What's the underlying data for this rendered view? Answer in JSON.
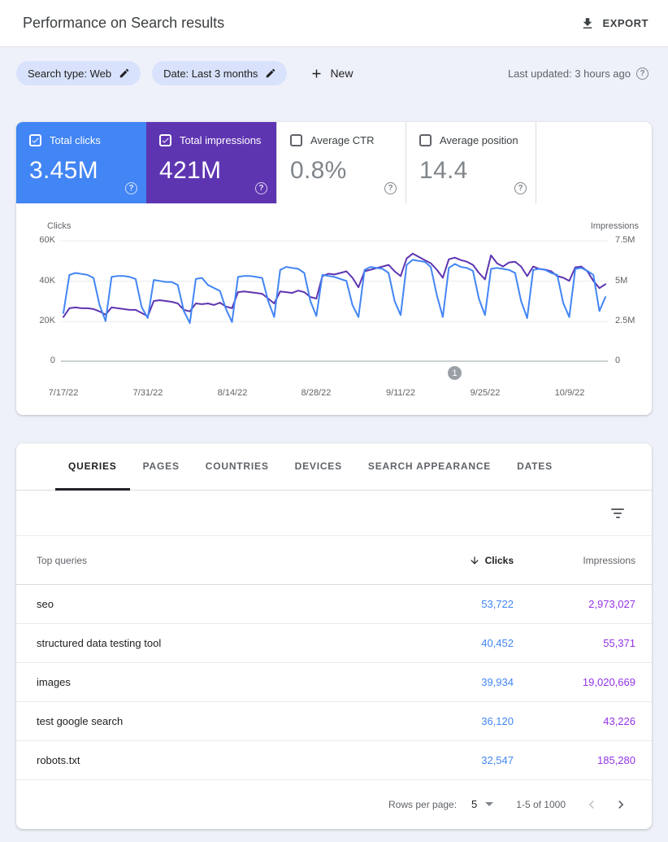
{
  "header": {
    "title": "Performance on Search results",
    "export_label": "EXPORT"
  },
  "filter_bar": {
    "search_type_chip": "Search type: Web",
    "date_chip": "Date: Last 3 months",
    "new_button": "New",
    "last_updated": "Last updated: 3 hours ago",
    "help_glyph": "?"
  },
  "metric_cards": [
    {
      "label": "Total clicks",
      "value": "3.45M",
      "selected": true,
      "color": "#4285f4"
    },
    {
      "label": "Total impressions",
      "value": "421M",
      "selected": true,
      "color": "#5e35b1"
    },
    {
      "label": "Average CTR",
      "value": "0.8%",
      "selected": false
    },
    {
      "label": "Average position",
      "value": "14.4",
      "selected": false
    }
  ],
  "chart_data": {
    "type": "line",
    "grid": "horizontal",
    "x_tick_labels": [
      "7/17/22",
      "7/31/22",
      "8/14/22",
      "8/28/22",
      "9/11/22",
      "9/25/22",
      "10/9/22"
    ],
    "left_axis": {
      "label": "Clicks",
      "ticks": [
        "60K",
        "40K",
        "20K",
        "0"
      ],
      "max": 60,
      "unit": "thousands"
    },
    "right_axis": {
      "label": "Impressions",
      "ticks": [
        "7.5M",
        "5M",
        "2.5M",
        "0"
      ],
      "max": 7.5,
      "unit": "millions"
    },
    "annotation": {
      "label": "1",
      "x_frac": 0.723
    },
    "series": [
      {
        "name": "Clicks",
        "axis": "left",
        "color": "#4285f4",
        "unit": "thousands",
        "values": [
          24,
          43,
          44,
          43.5,
          43,
          41.5,
          28,
          20,
          42,
          42.5,
          42.5,
          42,
          41,
          27,
          21.5,
          40.5,
          40,
          39.5,
          39.5,
          38,
          25,
          19,
          41,
          41.5,
          38,
          36.5,
          35,
          26,
          19.5,
          42,
          42.5,
          42.5,
          42,
          41.5,
          30,
          22,
          45.5,
          47,
          46.5,
          46,
          44,
          30,
          22.5,
          43,
          42.5,
          42,
          41,
          40,
          28,
          22,
          45.5,
          47,
          46.5,
          46,
          44,
          30,
          23,
          48,
          50.5,
          50,
          49.5,
          47,
          33,
          22,
          46.5,
          48.5,
          47,
          46.5,
          45,
          31,
          23,
          46,
          46.5,
          46,
          45.5,
          44,
          30,
          21.5,
          45.5,
          46,
          45.5,
          44,
          43,
          29,
          22,
          46,
          46.5,
          45,
          43,
          25,
          32
        ]
      },
      {
        "name": "Impressions",
        "axis": "right",
        "color": "#5e35b1",
        "unit": "millions",
        "values": [
          2.75,
          3.3,
          3.35,
          3.3,
          3.3,
          3.25,
          3.1,
          2.9,
          3.35,
          3.3,
          3.25,
          3.2,
          3.2,
          3.0,
          2.8,
          3.75,
          3.8,
          3.75,
          3.7,
          3.6,
          3.2,
          3.1,
          3.6,
          3.55,
          3.6,
          3.5,
          3.65,
          3.4,
          3.3,
          4.3,
          4.35,
          4.3,
          4.25,
          4.2,
          3.9,
          3.6,
          4.35,
          4.3,
          4.25,
          4.4,
          4.3,
          4.0,
          3.9,
          5.3,
          5.45,
          5.4,
          5.5,
          5.6,
          5.2,
          4.6,
          5.6,
          5.7,
          5.8,
          5.9,
          6.0,
          5.6,
          5.3,
          6.4,
          6.7,
          6.5,
          6.3,
          6.1,
          5.7,
          5.2,
          6.35,
          6.45,
          6.3,
          6.2,
          6.0,
          5.5,
          5.1,
          6.6,
          6.1,
          5.9,
          6.15,
          6.2,
          5.9,
          5.3,
          5.9,
          5.75,
          5.7,
          5.6,
          5.3,
          5.2,
          5.0,
          5.85,
          5.9,
          5.6,
          5.0,
          4.55,
          4.8
        ]
      }
    ]
  },
  "tabs": [
    "QUERIES",
    "PAGES",
    "COUNTRIES",
    "DEVICES",
    "SEARCH APPEARANCE",
    "DATES"
  ],
  "table": {
    "columns": {
      "query": "Top queries",
      "clicks": "Clicks",
      "impressions": "Impressions"
    },
    "sorted_by": "Clicks",
    "rows": [
      {
        "query": "seo",
        "clicks": "53,722",
        "impressions": "2,973,027"
      },
      {
        "query": "structured data testing tool",
        "clicks": "40,452",
        "impressions": "55,371"
      },
      {
        "query": "images",
        "clicks": "39,934",
        "impressions": "19,020,669"
      },
      {
        "query": "test google search",
        "clicks": "36,120",
        "impressions": "43,226"
      },
      {
        "query": "robots.txt",
        "clicks": "32,547",
        "impressions": "185,280"
      }
    ]
  },
  "pagination": {
    "rows_per_page_label": "Rows per page:",
    "rows_per_page": "5",
    "range_label": "1-5 of 1000"
  },
  "colors": {
    "clicks_blue": "#4285f4",
    "impressions_purple": "#5e35b1",
    "table_clicks_value": "#4285f4",
    "table_impressions_value": "#9334e6",
    "page_background": "#eef1f9"
  }
}
